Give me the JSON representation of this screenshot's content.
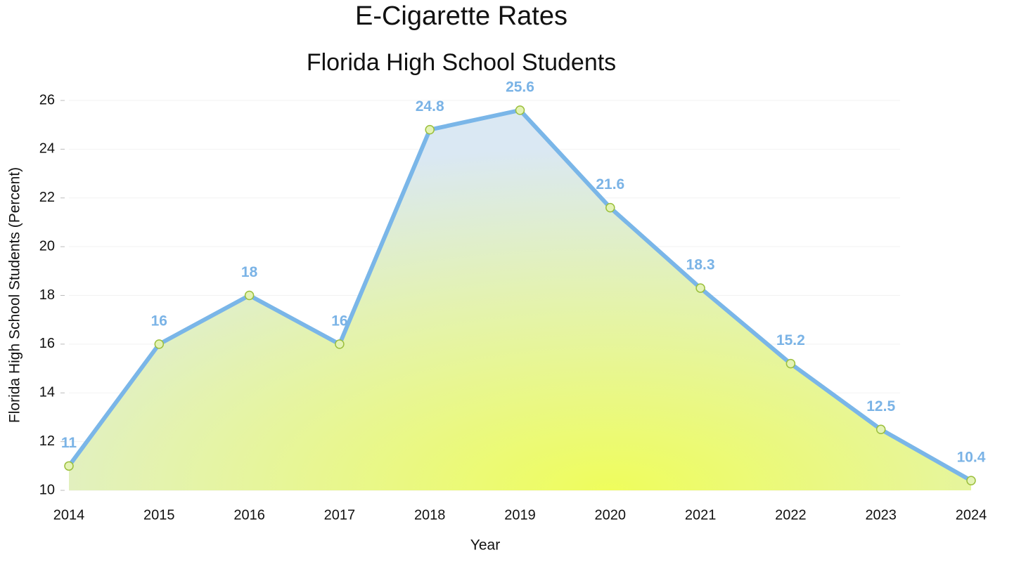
{
  "chart_data": {
    "type": "area-line",
    "title": "E-Cigarette Rates",
    "subtitle": "Florida High School Students",
    "x_label": "Year",
    "y_label": "Florida High School Students (Percent)",
    "x": [
      2014,
      2015,
      2016,
      2017,
      2018,
      2019,
      2020,
      2021,
      2022,
      2023,
      2024
    ],
    "series": [
      {
        "name": "Florida High School Students",
        "color": "#7ab6e8",
        "values": [
          11,
          16,
          18,
          16,
          24.8,
          25.6,
          21.6,
          18.3,
          15.2,
          12.5,
          10.4
        ]
      }
    ],
    "xlim": [
      2014,
      2024
    ],
    "xticks": [
      2014,
      2015,
      2016,
      2017,
      2018,
      2019,
      2020,
      2021,
      2022,
      2023,
      2024
    ],
    "ylim": [
      10,
      26
    ],
    "yticks": [
      10,
      12,
      14,
      16,
      18,
      20,
      22,
      24,
      26
    ],
    "grid": true
  }
}
